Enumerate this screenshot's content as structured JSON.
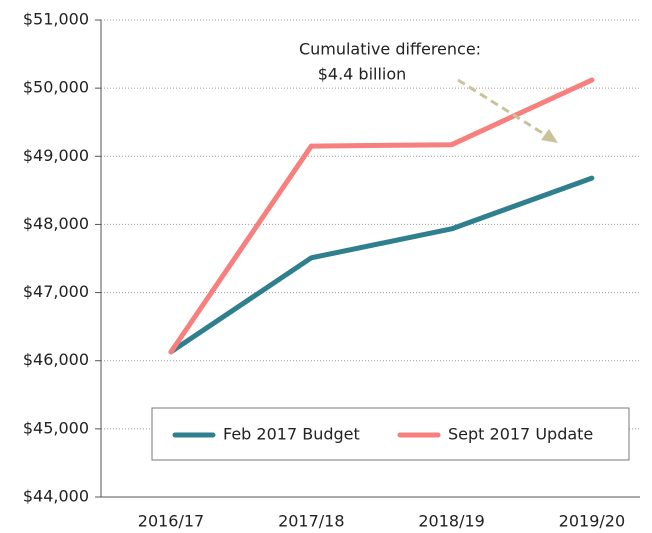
{
  "chart_data": {
    "type": "line",
    "categories": [
      "2016/17",
      "2017/18",
      "2018/19",
      "2019/20"
    ],
    "series": [
      {
        "name": "Feb 2017 Budget",
        "color": "#2f7f8e",
        "values": [
          46130,
          47510,
          47935,
          48680
        ]
      },
      {
        "name": "Sept 2017 Update",
        "color": "#f77f7d",
        "values": [
          46130,
          49150,
          49170,
          50120
        ]
      }
    ],
    "ylim": [
      44000,
      51000
    ],
    "yticks": [
      {
        "value": 44000,
        "label": "$44,000"
      },
      {
        "value": 45000,
        "label": "$45,000"
      },
      {
        "value": 46000,
        "label": "$46,000"
      },
      {
        "value": 47000,
        "label": "$47,000"
      },
      {
        "value": 48000,
        "label": "$48,000"
      },
      {
        "value": 49000,
        "label": "$49,000"
      },
      {
        "value": 50000,
        "label": "$50,000"
      },
      {
        "value": 51000,
        "label": "$51,000"
      }
    ],
    "grid": true,
    "annotation": [
      "Cumulative difference:",
      "$4.4 billion"
    ]
  }
}
